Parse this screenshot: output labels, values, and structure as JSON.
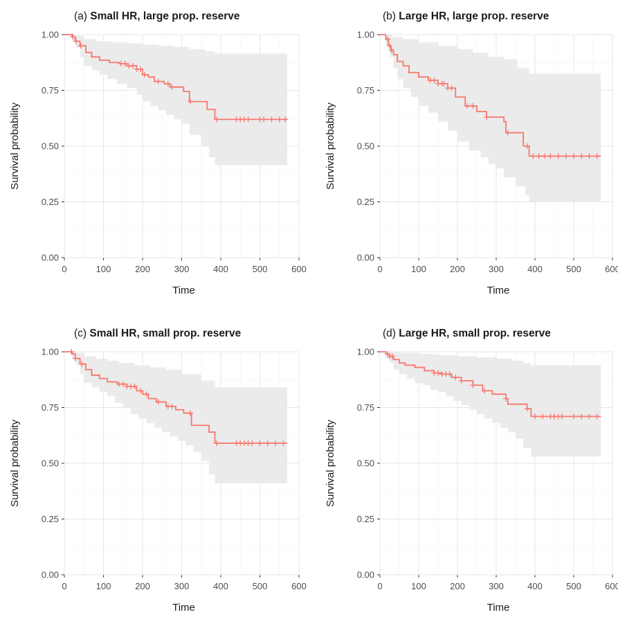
{
  "chart_data": [
    {
      "type": "line",
      "panel_prefix": "(a)",
      "title": "Small HR, large prop. reserve",
      "xlabel": "Time",
      "ylabel": "Survival probability",
      "xlim": [
        0,
        600
      ],
      "ylim": [
        0,
        1
      ],
      "xticks": [
        "0",
        "100",
        "200",
        "300",
        "400",
        "500",
        "600"
      ],
      "yticks": [
        "0.00",
        "0.25",
        "0.50",
        "0.75",
        "1.00"
      ],
      "grid": true,
      "line_color": "#F8766D",
      "band_color": "#ebebeb",
      "steps": [
        [
          0,
          1.0
        ],
        [
          20,
          0.99
        ],
        [
          28,
          0.97
        ],
        [
          40,
          0.95
        ],
        [
          55,
          0.92
        ],
        [
          70,
          0.9
        ],
        [
          90,
          0.885
        ],
        [
          115,
          0.875
        ],
        [
          140,
          0.87
        ],
        [
          160,
          0.86
        ],
        [
          185,
          0.845
        ],
        [
          200,
          0.82
        ],
        [
          215,
          0.81
        ],
        [
          230,
          0.79
        ],
        [
          255,
          0.78
        ],
        [
          270,
          0.765
        ],
        [
          305,
          0.745
        ],
        [
          320,
          0.7
        ],
        [
          365,
          0.665
        ],
        [
          385,
          0.62
        ],
        [
          570,
          0.62
        ]
      ],
      "lower": [
        [
          0,
          1.0
        ],
        [
          20,
          0.97
        ],
        [
          30,
          0.94
        ],
        [
          40,
          0.9
        ],
        [
          50,
          0.86
        ],
        [
          70,
          0.84
        ],
        [
          90,
          0.82
        ],
        [
          110,
          0.8
        ],
        [
          135,
          0.78
        ],
        [
          160,
          0.76
        ],
        [
          185,
          0.73
        ],
        [
          200,
          0.7
        ],
        [
          220,
          0.68
        ],
        [
          240,
          0.66
        ],
        [
          260,
          0.64
        ],
        [
          280,
          0.62
        ],
        [
          300,
          0.6
        ],
        [
          320,
          0.55
        ],
        [
          350,
          0.5
        ],
        [
          370,
          0.45
        ],
        [
          385,
          0.415
        ],
        [
          570,
          0.415
        ]
      ],
      "upper": [
        [
          0,
          1.0
        ],
        [
          30,
          0.995
        ],
        [
          50,
          0.98
        ],
        [
          80,
          0.97
        ],
        [
          120,
          0.965
        ],
        [
          160,
          0.96
        ],
        [
          200,
          0.955
        ],
        [
          240,
          0.95
        ],
        [
          280,
          0.945
        ],
        [
          320,
          0.935
        ],
        [
          360,
          0.925
        ],
        [
          385,
          0.915
        ],
        [
          570,
          0.915
        ]
      ],
      "censor_times": [
        22,
        30,
        42,
        145,
        155,
        165,
        175,
        185,
        195,
        205,
        240,
        265,
        275,
        322,
        390,
        440,
        450,
        460,
        470,
        500,
        510,
        530,
        550,
        565
      ]
    },
    {
      "type": "line",
      "panel_prefix": "(b)",
      "title": "Large HR, large prop. reserve",
      "xlabel": "Time",
      "ylabel": "Survival probability",
      "xlim": [
        0,
        600
      ],
      "ylim": [
        0,
        1
      ],
      "xticks": [
        "0",
        "100",
        "200",
        "300",
        "400",
        "500",
        "600"
      ],
      "yticks": [
        "0.00",
        "0.25",
        "0.50",
        "0.75",
        "1.00"
      ],
      "grid": true,
      "line_color": "#F8766D",
      "band_color": "#ebebeb",
      "steps": [
        [
          0,
          1.0
        ],
        [
          15,
          0.98
        ],
        [
          22,
          0.95
        ],
        [
          28,
          0.93
        ],
        [
          35,
          0.91
        ],
        [
          45,
          0.88
        ],
        [
          60,
          0.86
        ],
        [
          75,
          0.83
        ],
        [
          100,
          0.81
        ],
        [
          125,
          0.795
        ],
        [
          150,
          0.78
        ],
        [
          175,
          0.76
        ],
        [
          195,
          0.72
        ],
        [
          220,
          0.68
        ],
        [
          250,
          0.655
        ],
        [
          275,
          0.63
        ],
        [
          320,
          0.61
        ],
        [
          325,
          0.56
        ],
        [
          370,
          0.5
        ],
        [
          385,
          0.455
        ],
        [
          570,
          0.455
        ]
      ],
      "lower": [
        [
          0,
          1.0
        ],
        [
          15,
          0.95
        ],
        [
          25,
          0.9
        ],
        [
          35,
          0.85
        ],
        [
          45,
          0.8
        ],
        [
          60,
          0.76
        ],
        [
          80,
          0.72
        ],
        [
          100,
          0.68
        ],
        [
          125,
          0.65
        ],
        [
          150,
          0.61
        ],
        [
          175,
          0.57
        ],
        [
          200,
          0.52
        ],
        [
          230,
          0.48
        ],
        [
          260,
          0.45
        ],
        [
          280,
          0.42
        ],
        [
          300,
          0.4
        ],
        [
          320,
          0.36
        ],
        [
          350,
          0.32
        ],
        [
          375,
          0.28
        ],
        [
          385,
          0.25
        ],
        [
          570,
          0.25
        ]
      ],
      "upper": [
        [
          0,
          1.0
        ],
        [
          30,
          0.99
        ],
        [
          60,
          0.98
        ],
        [
          100,
          0.965
        ],
        [
          150,
          0.95
        ],
        [
          200,
          0.935
        ],
        [
          240,
          0.92
        ],
        [
          280,
          0.9
        ],
        [
          320,
          0.89
        ],
        [
          355,
          0.85
        ],
        [
          385,
          0.825
        ],
        [
          570,
          0.825
        ]
      ],
      "censor_times": [
        20,
        25,
        30,
        130,
        140,
        150,
        160,
        165,
        175,
        185,
        225,
        240,
        275,
        330,
        380,
        395,
        410,
        425,
        440,
        460,
        480,
        500,
        520,
        540,
        560
      ]
    },
    {
      "type": "line",
      "panel_prefix": "(c)",
      "title": "Small HR, small prop. reserve",
      "xlabel": "Time",
      "ylabel": "Survival probability",
      "xlim": [
        0,
        600
      ],
      "ylim": [
        0,
        1
      ],
      "xticks": [
        "0",
        "100",
        "200",
        "300",
        "400",
        "500",
        "600"
      ],
      "yticks": [
        "0.00",
        "0.25",
        "0.50",
        "0.75",
        "1.00"
      ],
      "grid": true,
      "line_color": "#F8766D",
      "band_color": "#ebebeb",
      "steps": [
        [
          0,
          1.0
        ],
        [
          20,
          0.99
        ],
        [
          28,
          0.97
        ],
        [
          40,
          0.945
        ],
        [
          55,
          0.92
        ],
        [
          70,
          0.895
        ],
        [
          90,
          0.88
        ],
        [
          110,
          0.865
        ],
        [
          135,
          0.855
        ],
        [
          160,
          0.845
        ],
        [
          185,
          0.825
        ],
        [
          200,
          0.81
        ],
        [
          215,
          0.79
        ],
        [
          235,
          0.775
        ],
        [
          260,
          0.755
        ],
        [
          285,
          0.74
        ],
        [
          305,
          0.725
        ],
        [
          325,
          0.67
        ],
        [
          370,
          0.64
        ],
        [
          385,
          0.59
        ],
        [
          570,
          0.59
        ]
      ],
      "lower": [
        [
          0,
          1.0
        ],
        [
          20,
          0.97
        ],
        [
          30,
          0.94
        ],
        [
          40,
          0.9
        ],
        [
          50,
          0.86
        ],
        [
          70,
          0.84
        ],
        [
          90,
          0.82
        ],
        [
          110,
          0.8
        ],
        [
          130,
          0.77
        ],
        [
          150,
          0.75
        ],
        [
          170,
          0.72
        ],
        [
          190,
          0.7
        ],
        [
          210,
          0.68
        ],
        [
          230,
          0.66
        ],
        [
          250,
          0.64
        ],
        [
          270,
          0.62
        ],
        [
          290,
          0.6
        ],
        [
          310,
          0.58
        ],
        [
          330,
          0.55
        ],
        [
          350,
          0.51
        ],
        [
          370,
          0.45
        ],
        [
          385,
          0.41
        ],
        [
          570,
          0.41
        ]
      ],
      "upper": [
        [
          0,
          1.0
        ],
        [
          30,
          0.995
        ],
        [
          50,
          0.98
        ],
        [
          80,
          0.97
        ],
        [
          110,
          0.96
        ],
        [
          140,
          0.95
        ],
        [
          180,
          0.94
        ],
        [
          220,
          0.93
        ],
        [
          260,
          0.92
        ],
        [
          300,
          0.9
        ],
        [
          350,
          0.87
        ],
        [
          385,
          0.84
        ],
        [
          570,
          0.84
        ]
      ],
      "censor_times": [
        18,
        28,
        45,
        140,
        150,
        160,
        170,
        180,
        195,
        210,
        240,
        265,
        275,
        322,
        390,
        440,
        450,
        460,
        470,
        480,
        500,
        520,
        540,
        560
      ]
    },
    {
      "type": "line",
      "panel_prefix": "(d)",
      "title": "Large HR, small prop. reserve",
      "xlabel": "Time",
      "ylabel": "Survival probability",
      "xlim": [
        0,
        600
      ],
      "ylim": [
        0,
        1
      ],
      "xticks": [
        "0",
        "100",
        "200",
        "300",
        "400",
        "500",
        "600"
      ],
      "yticks": [
        "0.00",
        "0.25",
        "0.50",
        "0.75",
        "1.00"
      ],
      "grid": true,
      "line_color": "#F8766D",
      "band_color": "#ebebeb",
      "steps": [
        [
          0,
          1.0
        ],
        [
          15,
          0.99
        ],
        [
          25,
          0.98
        ],
        [
          35,
          0.965
        ],
        [
          50,
          0.95
        ],
        [
          65,
          0.94
        ],
        [
          90,
          0.93
        ],
        [
          115,
          0.915
        ],
        [
          140,
          0.905
        ],
        [
          160,
          0.9
        ],
        [
          185,
          0.885
        ],
        [
          210,
          0.87
        ],
        [
          240,
          0.85
        ],
        [
          265,
          0.825
        ],
        [
          290,
          0.81
        ],
        [
          325,
          0.79
        ],
        [
          330,
          0.765
        ],
        [
          380,
          0.745
        ],
        [
          390,
          0.71
        ],
        [
          570,
          0.71
        ]
      ],
      "lower": [
        [
          0,
          1.0
        ],
        [
          15,
          0.97
        ],
        [
          25,
          0.95
        ],
        [
          35,
          0.92
        ],
        [
          50,
          0.9
        ],
        [
          70,
          0.88
        ],
        [
          90,
          0.86
        ],
        [
          110,
          0.85
        ],
        [
          130,
          0.83
        ],
        [
          150,
          0.82
        ],
        [
          170,
          0.8
        ],
        [
          190,
          0.78
        ],
        [
          210,
          0.76
        ],
        [
          230,
          0.74
        ],
        [
          250,
          0.72
        ],
        [
          270,
          0.7
        ],
        [
          290,
          0.68
        ],
        [
          310,
          0.66
        ],
        [
          330,
          0.64
        ],
        [
          350,
          0.61
        ],
        [
          370,
          0.57
        ],
        [
          390,
          0.53
        ],
        [
          570,
          0.53
        ]
      ],
      "upper": [
        [
          0,
          1.0
        ],
        [
          50,
          0.995
        ],
        [
          100,
          0.99
        ],
        [
          150,
          0.985
        ],
        [
          200,
          0.98
        ],
        [
          250,
          0.975
        ],
        [
          300,
          0.97
        ],
        [
          340,
          0.96
        ],
        [
          370,
          0.95
        ],
        [
          390,
          0.94
        ],
        [
          570,
          0.94
        ]
      ],
      "censor_times": [
        20,
        25,
        32,
        140,
        150,
        160,
        170,
        180,
        195,
        210,
        240,
        270,
        325,
        380,
        400,
        420,
        440,
        450,
        460,
        470,
        500,
        520,
        540,
        560
      ]
    }
  ]
}
